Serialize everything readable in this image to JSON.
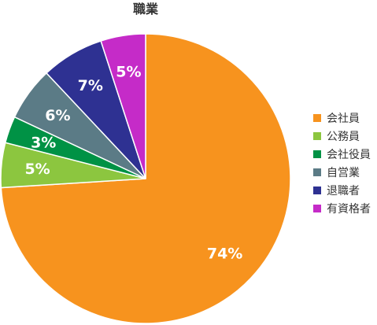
{
  "chart_data": {
    "type": "pie",
    "title": "職業",
    "unit": "%",
    "legend_position": "right",
    "start_angle_deg": 0,
    "direction": "clockwise",
    "slices": [
      {
        "label": "会社員",
        "value": 74,
        "display": "74%",
        "color": "#F7931E"
      },
      {
        "label": "公務員",
        "value": 5,
        "display": "5%",
        "color": "#8CC63F"
      },
      {
        "label": "会社役員",
        "value": 3,
        "display": "3%",
        "color": "#009245"
      },
      {
        "label": "自営業",
        "value": 6,
        "display": "6%",
        "color": "#5B7B86"
      },
      {
        "label": "退職者",
        "value": 7,
        "display": "7%",
        "color": "#2E3192"
      },
      {
        "label": "有資格者",
        "value": 5,
        "display": "5%",
        "color": "#C52BC8"
      }
    ]
  }
}
